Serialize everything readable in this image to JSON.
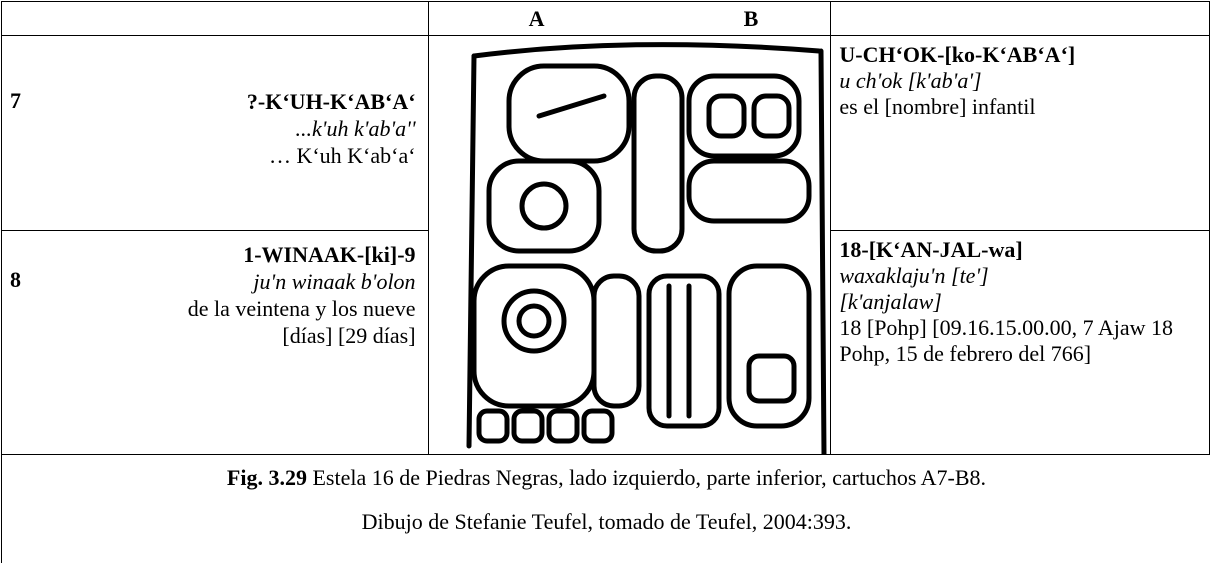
{
  "table": {
    "header": [
      "A",
      "B"
    ],
    "rows": [
      {
        "number": "7",
        "transliteration": "?-K‘UH-K‘AB‘A‘",
        "transcription": "...k'uh k'ab'a''",
        "translation": "… K‘uh K‘ab‘a‘",
        "right_transliteration": "U-CH‘OK-[ko-K‘AB‘A‘]",
        "right_transcription": "u ch'ok [k'ab'a']",
        "right_translation": "es el [nombre] infantil"
      },
      {
        "number": "8",
        "transliteration": "1-WINAAK-[ki]-9",
        "transcription": "ju'n winaak b'olon",
        "translation": "de la veintena y los nueve [días] [29 días]",
        "right_transliteration": "18-[K‘AN-JAL-wa]",
        "right_transcription": "waxaklaju'n [te'] [k'anjalaw]",
        "right_translation": "18 [Pohp] [09.16.15.00.00, 7 Ajaw 18 Pohp, 15 de febrero del 766]"
      }
    ]
  },
  "caption": {
    "label": "Fig. 3.29",
    "text": "Estela 16 de Piedras Negras, lado izquierdo, parte inferior, cartuchos A7-B8.",
    "credit": "Dibujo de Stefanie Teufel, tomado de Teufel, 2004:393."
  }
}
